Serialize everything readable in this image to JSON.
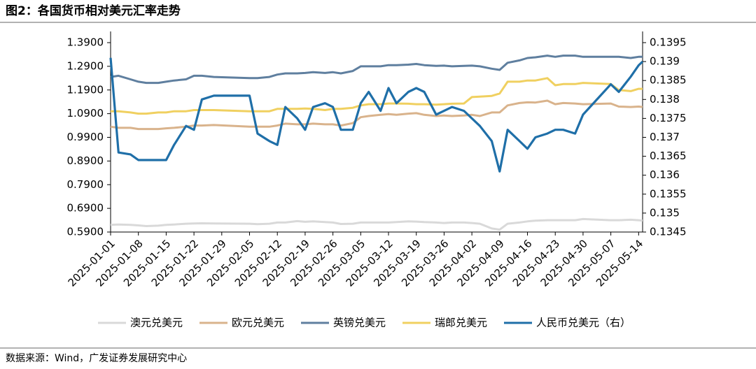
{
  "chart_data": {
    "type": "line",
    "title": "图2：各国货币相对美元汇率走势",
    "source": "数据来源：Wind，广发证券发展研究中心",
    "x": [
      "2025-01-01",
      "2025-01-03",
      "2025-01-06",
      "2025-01-08",
      "2025-01-10",
      "2025-01-13",
      "2025-01-15",
      "2025-01-17",
      "2025-01-20",
      "2025-01-22",
      "2025-01-24",
      "2025-01-27",
      "2025-02-05",
      "2025-02-07",
      "2025-02-10",
      "2025-02-12",
      "2025-02-14",
      "2025-02-17",
      "2025-02-19",
      "2025-02-21",
      "2025-02-24",
      "2025-02-26",
      "2025-02-28",
      "2025-03-03",
      "2025-03-05",
      "2025-03-07",
      "2025-03-10",
      "2025-03-12",
      "2025-03-14",
      "2025-03-17",
      "2025-03-19",
      "2025-03-21",
      "2025-03-24",
      "2025-03-26",
      "2025-03-28",
      "2025-03-31",
      "2025-04-02",
      "2025-04-04",
      "2025-04-07",
      "2025-04-09",
      "2025-04-11",
      "2025-04-14",
      "2025-04-16",
      "2025-04-18",
      "2025-04-21",
      "2025-04-23",
      "2025-04-25",
      "2025-04-28",
      "2025-04-30",
      "2025-05-07",
      "2025-05-09",
      "2025-05-12",
      "2025-05-14",
      "2025-05-15"
    ],
    "xlim": [
      "2025-01-01",
      "2025-05-15"
    ],
    "xticks": [
      "2025-01-01",
      "2025-01-08",
      "2025-01-15",
      "2025-01-22",
      "2025-01-29",
      "2025-02-05",
      "2025-02-12",
      "2025-02-19",
      "2025-02-26",
      "2025-03-05",
      "2025-03-12",
      "2025-03-19",
      "2025-03-26",
      "2025-04-02",
      "2025-04-09",
      "2025-04-16",
      "2025-04-23",
      "2025-04-30",
      "2025-05-07",
      "2025-05-14"
    ],
    "ylim": [
      0.59,
      1.39
    ],
    "yticks": [
      {
        "value": 0.59,
        "label": "0.5900"
      },
      {
        "value": 0.69,
        "label": "0.6900"
      },
      {
        "value": 0.79,
        "label": "0.7900"
      },
      {
        "value": 0.89,
        "label": "0.8900"
      },
      {
        "value": 0.99,
        "label": "0.9900"
      },
      {
        "value": 1.09,
        "label": "1.0900"
      },
      {
        "value": 1.19,
        "label": "1.1900"
      },
      {
        "value": 1.29,
        "label": "1.2900"
      },
      {
        "value": 1.39,
        "label": "1.3900"
      }
    ],
    "y2lim": [
      0.1345,
      0.1395
    ],
    "y2ticks": [
      0.1345,
      0.135,
      0.1355,
      0.136,
      0.1365,
      0.137,
      0.1375,
      0.138,
      0.1385,
      0.139,
      0.1395
    ],
    "legend": "bottom",
    "series": [
      {
        "name": "澳元兑美元",
        "color": "#d9d9d9",
        "values": [
          0.62,
          0.622,
          0.62,
          0.618,
          0.615,
          0.617,
          0.62,
          0.622,
          0.625,
          0.626,
          0.627,
          0.626,
          0.625,
          0.623,
          0.625,
          0.63,
          0.63,
          0.636,
          0.633,
          0.635,
          0.632,
          0.63,
          0.624,
          0.625,
          0.63,
          0.63,
          0.63,
          0.63,
          0.632,
          0.635,
          0.634,
          0.632,
          0.63,
          0.628,
          0.63,
          0.63,
          0.628,
          0.625,
          0.605,
          0.6,
          0.625,
          0.63,
          0.635,
          0.638,
          0.64,
          0.64,
          0.64,
          0.64,
          0.645,
          0.64,
          0.64,
          0.642,
          0.64,
          0.638
        ]
      },
      {
        "name": "欧元兑美元",
        "color": "#d9b38c",
        "values": [
          1.035,
          1.03,
          1.03,
          1.025,
          1.025,
          1.025,
          1.028,
          1.03,
          1.035,
          1.04,
          1.04,
          1.042,
          1.035,
          1.035,
          1.035,
          1.04,
          1.048,
          1.045,
          1.045,
          1.048,
          1.045,
          1.045,
          1.04,
          1.05,
          1.075,
          1.08,
          1.085,
          1.088,
          1.085,
          1.09,
          1.092,
          1.085,
          1.08,
          1.082,
          1.08,
          1.082,
          1.085,
          1.08,
          1.095,
          1.095,
          1.125,
          1.135,
          1.138,
          1.137,
          1.145,
          1.13,
          1.135,
          1.133,
          1.13,
          1.133,
          1.12,
          1.118,
          1.12,
          1.118
        ]
      },
      {
        "name": "英镑兑美元",
        "color": "#5f7f9f",
        "values": [
          1.245,
          1.25,
          1.235,
          1.225,
          1.22,
          1.22,
          1.225,
          1.23,
          1.235,
          1.25,
          1.25,
          1.245,
          1.24,
          1.24,
          1.245,
          1.255,
          1.26,
          1.26,
          1.262,
          1.265,
          1.262,
          1.265,
          1.26,
          1.27,
          1.29,
          1.29,
          1.29,
          1.295,
          1.295,
          1.297,
          1.3,
          1.295,
          1.292,
          1.293,
          1.29,
          1.292,
          1.293,
          1.29,
          1.28,
          1.275,
          1.305,
          1.315,
          1.325,
          1.328,
          1.335,
          1.33,
          1.335,
          1.335,
          1.33,
          1.33,
          1.33,
          1.325,
          1.33,
          1.33
        ]
      },
      {
        "name": "瑞郎兑美元",
        "color": "#f0d060",
        "values": [
          1.1,
          1.1,
          1.095,
          1.09,
          1.09,
          1.095,
          1.095,
          1.1,
          1.1,
          1.105,
          1.105,
          1.105,
          1.1,
          1.1,
          1.1,
          1.11,
          1.11,
          1.11,
          1.112,
          1.11,
          1.105,
          1.11,
          1.11,
          1.115,
          1.125,
          1.13,
          1.13,
          1.133,
          1.133,
          1.132,
          1.13,
          1.13,
          1.128,
          1.13,
          1.132,
          1.133,
          1.16,
          1.162,
          1.165,
          1.175,
          1.225,
          1.225,
          1.23,
          1.23,
          1.24,
          1.21,
          1.215,
          1.215,
          1.22,
          1.215,
          1.19,
          1.185,
          1.195,
          1.195
        ]
      },
      {
        "name": "人民币兑美元（右）",
        "color": "#1f6fa8",
        "axis": "y2",
        "values": [
          0.1391,
          0.1366,
          0.13655,
          0.1364,
          0.1364,
          0.1364,
          0.1364,
          0.1368,
          0.1373,
          0.1372,
          0.138,
          0.1381,
          0.1381,
          0.1371,
          0.1369,
          0.1368,
          0.1378,
          0.1375,
          0.1372,
          0.1378,
          0.1379,
          0.1378,
          0.1372,
          0.1372,
          0.1379,
          0.1382,
          0.1377,
          0.1383,
          0.1379,
          0.1382,
          0.1383,
          0.1382,
          0.1376,
          0.1377,
          0.1378,
          0.1377,
          0.1375,
          0.1373,
          0.1369,
          0.1361,
          0.1372,
          0.1369,
          0.1367,
          0.137,
          0.1371,
          0.1372,
          0.1372,
          0.1371,
          0.1376,
          0.1384,
          0.1382,
          0.1386,
          0.1389,
          0.139
        ]
      }
    ]
  }
}
